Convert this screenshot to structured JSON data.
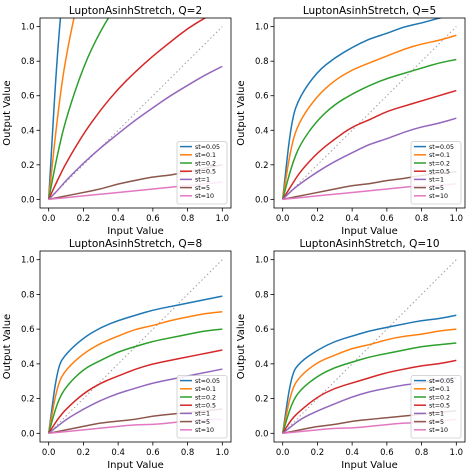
{
  "colors": {
    "st=0.05": "#1f77b4",
    "st=0.1": "#ff7f0e",
    "st=0.2": "#2ca02c",
    "st=0.5": "#d62728",
    "st=1": "#9467bd",
    "st=5": "#8c564b",
    "st=10": "#e377c2",
    "identity": "#a0a0a0"
  },
  "chart_data": [
    {
      "type": "line",
      "title": "LuptonAsinhStretch, Q=2",
      "xlabel": "Input Value",
      "ylabel": "Output Value",
      "xlim": [
        -0.05,
        1.05
      ],
      "ylim": [
        -0.05,
        1.05
      ],
      "xticks": [
        "0.0",
        "0.2",
        "0.4",
        "0.6",
        "0.8",
        "1.0"
      ],
      "yticks": [
        "0.0",
        "0.2",
        "0.4",
        "0.6",
        "0.8",
        "1.0"
      ],
      "Q": 2,
      "legend_position": "lower-right",
      "x": [
        0,
        0.05,
        0.1,
        0.2,
        0.3,
        0.4,
        0.5,
        0.6,
        0.7,
        0.8,
        0.9,
        1.0
      ],
      "series": [
        {
          "name": "st=0.05",
          "values": [
            0,
            0.87,
            1.39,
            null,
            null,
            null,
            null,
            null,
            null,
            null,
            null,
            null
          ]
        },
        {
          "name": "st=0.1",
          "values": [
            0,
            0.48,
            0.84,
            1.3,
            null,
            null,
            null,
            null,
            null,
            null,
            null,
            null
          ]
        },
        {
          "name": "st=0.2",
          "values": [
            0,
            0.26,
            0.47,
            0.77,
            0.98,
            1.14,
            null,
            null,
            null,
            null,
            null,
            null
          ]
        },
        {
          "name": "st=0.5",
          "values": [
            0,
            0.11,
            0.21,
            0.38,
            0.52,
            0.64,
            0.74,
            0.83,
            0.91,
            0.99,
            1.05,
            1.11
          ]
        },
        {
          "name": "st=1",
          "values": [
            0,
            0.05,
            0.11,
            0.21,
            0.3,
            0.38,
            0.46,
            0.53,
            0.6,
            0.66,
            0.72,
            0.77
          ]
        },
        {
          "name": "st=5",
          "values": [
            0,
            0.01,
            0.02,
            0.04,
            0.06,
            0.09,
            0.11,
            0.13,
            0.14,
            0.16,
            0.18,
            0.2
          ]
        },
        {
          "name": "st=10",
          "values": [
            0,
            0.005,
            0.01,
            0.02,
            0.03,
            0.04,
            0.05,
            0.06,
            0.07,
            0.08,
            0.09,
            0.1
          ]
        }
      ]
    },
    {
      "type": "line",
      "title": "LuptonAsinhStretch, Q=5",
      "xlabel": "Input Value",
      "ylabel": "Output Value",
      "xlim": [
        -0.05,
        1.05
      ],
      "ylim": [
        -0.05,
        1.05
      ],
      "xticks": [
        "0.0",
        "0.2",
        "0.4",
        "0.6",
        "0.8",
        "1.0"
      ],
      "yticks": [
        "0.0",
        "0.2",
        "0.4",
        "0.6",
        "0.8",
        "1.0"
      ],
      "Q": 5,
      "legend_position": "lower-right",
      "x": [
        0,
        0.05,
        0.1,
        0.2,
        0.3,
        0.4,
        0.5,
        0.6,
        0.7,
        0.8,
        0.9,
        1.0
      ],
      "series": [
        {
          "name": "st=0.05",
          "values": [
            0,
            0.46,
            0.6,
            0.74,
            0.82,
            0.88,
            0.93,
            0.96,
            1.0,
            1.02,
            1.05,
            1.07
          ]
        },
        {
          "name": "st=0.1",
          "values": [
            0,
            0.32,
            0.46,
            0.6,
            0.69,
            0.75,
            0.79,
            0.83,
            0.87,
            0.9,
            0.92,
            0.95
          ]
        },
        {
          "name": "st=0.2",
          "values": [
            0,
            0.19,
            0.32,
            0.46,
            0.55,
            0.61,
            0.66,
            0.7,
            0.73,
            0.76,
            0.79,
            0.81
          ]
        },
        {
          "name": "st=0.5",
          "values": [
            0,
            0.08,
            0.16,
            0.27,
            0.35,
            0.42,
            0.46,
            0.51,
            0.54,
            0.57,
            0.6,
            0.63
          ]
        },
        {
          "name": "st=1",
          "values": [
            0,
            0.05,
            0.09,
            0.16,
            0.22,
            0.27,
            0.32,
            0.35,
            0.39,
            0.42,
            0.44,
            0.47
          ]
        },
        {
          "name": "st=5",
          "values": [
            0,
            0.01,
            0.02,
            0.04,
            0.06,
            0.08,
            0.09,
            0.11,
            0.12,
            0.14,
            0.15,
            0.16
          ]
        },
        {
          "name": "st=10",
          "values": [
            0,
            0.005,
            0.01,
            0.02,
            0.03,
            0.04,
            0.05,
            0.06,
            0.07,
            0.08,
            0.08,
            0.09
          ]
        }
      ]
    },
    {
      "type": "line",
      "title": "LuptonAsinhStretch, Q=8",
      "xlabel": "Input Value",
      "ylabel": "Output Value",
      "xlim": [
        -0.05,
        1.05
      ],
      "ylim": [
        -0.05,
        1.05
      ],
      "xticks": [
        "0.0",
        "0.2",
        "0.4",
        "0.6",
        "0.8",
        "1.0"
      ],
      "yticks": [
        "0.0",
        "0.2",
        "0.4",
        "0.6",
        "0.8",
        "1.0"
      ],
      "Q": 8,
      "legend_position": "lower-right",
      "x": [
        0,
        0.05,
        0.1,
        0.2,
        0.3,
        0.4,
        0.5,
        0.6,
        0.7,
        0.8,
        0.9,
        1.0
      ],
      "series": [
        {
          "name": "st=0.05",
          "values": [
            0,
            0.38,
            0.46,
            0.55,
            0.61,
            0.65,
            0.68,
            0.71,
            0.73,
            0.75,
            0.77,
            0.79
          ]
        },
        {
          "name": "st=0.1",
          "values": [
            0,
            0.28,
            0.37,
            0.46,
            0.52,
            0.56,
            0.6,
            0.62,
            0.65,
            0.67,
            0.69,
            0.7
          ]
        },
        {
          "name": "st=0.2",
          "values": [
            0,
            0.18,
            0.27,
            0.37,
            0.42,
            0.47,
            0.5,
            0.53,
            0.55,
            0.57,
            0.59,
            0.6
          ]
        },
        {
          "name": "st=0.5",
          "values": [
            0,
            0.08,
            0.14,
            0.23,
            0.29,
            0.33,
            0.37,
            0.4,
            0.42,
            0.44,
            0.46,
            0.48
          ]
        },
        {
          "name": "st=1",
          "values": [
            0,
            0.04,
            0.08,
            0.14,
            0.19,
            0.23,
            0.26,
            0.29,
            0.31,
            0.33,
            0.35,
            0.37
          ]
        },
        {
          "name": "st=5",
          "values": [
            0,
            0.01,
            0.02,
            0.04,
            0.06,
            0.07,
            0.08,
            0.1,
            0.11,
            0.12,
            0.13,
            0.14
          ]
        },
        {
          "name": "st=10",
          "values": [
            0,
            0.005,
            0.01,
            0.02,
            0.03,
            0.04,
            0.05,
            0.05,
            0.06,
            0.07,
            0.08,
            0.08
          ]
        }
      ]
    },
    {
      "type": "line",
      "title": "LuptonAsinhStretch, Q=10",
      "xlabel": "Input Value",
      "ylabel": "Output Value",
      "xlim": [
        -0.05,
        1.05
      ],
      "ylim": [
        -0.05,
        1.05
      ],
      "xticks": [
        "0.0",
        "0.2",
        "0.4",
        "0.6",
        "0.8",
        "1.0"
      ],
      "yticks": [
        "0.0",
        "0.2",
        "0.4",
        "0.6",
        "0.8",
        "1.0"
      ],
      "Q": 10,
      "legend_position": "lower-right",
      "x": [
        0,
        0.05,
        0.1,
        0.2,
        0.3,
        0.4,
        0.5,
        0.6,
        0.7,
        0.8,
        0.9,
        1.0
      ],
      "series": [
        {
          "name": "st=0.05",
          "values": [
            0,
            0.34,
            0.41,
            0.48,
            0.53,
            0.56,
            0.59,
            0.61,
            0.63,
            0.65,
            0.66,
            0.68
          ]
        },
        {
          "name": "st=0.1",
          "values": [
            0,
            0.25,
            0.33,
            0.41,
            0.45,
            0.49,
            0.51,
            0.54,
            0.56,
            0.57,
            0.59,
            0.6
          ]
        },
        {
          "name": "st=0.2",
          "values": [
            0,
            0.17,
            0.25,
            0.33,
            0.38,
            0.41,
            0.44,
            0.46,
            0.48,
            0.5,
            0.51,
            0.52
          ]
        },
        {
          "name": "st=0.5",
          "values": [
            0,
            0.08,
            0.13,
            0.21,
            0.26,
            0.29,
            0.32,
            0.35,
            0.37,
            0.39,
            0.4,
            0.42
          ]
        },
        {
          "name": "st=1",
          "values": [
            0,
            0.04,
            0.08,
            0.13,
            0.17,
            0.21,
            0.24,
            0.26,
            0.28,
            0.29,
            0.31,
            0.32
          ]
        },
        {
          "name": "st=5",
          "values": [
            0,
            0.01,
            0.02,
            0.04,
            0.05,
            0.07,
            0.08,
            0.09,
            0.1,
            0.11,
            0.12,
            0.13
          ]
        },
        {
          "name": "st=10",
          "values": [
            0,
            0.005,
            0.01,
            0.02,
            0.03,
            0.03,
            0.04,
            0.05,
            0.06,
            0.06,
            0.07,
            0.08
          ]
        }
      ]
    }
  ]
}
